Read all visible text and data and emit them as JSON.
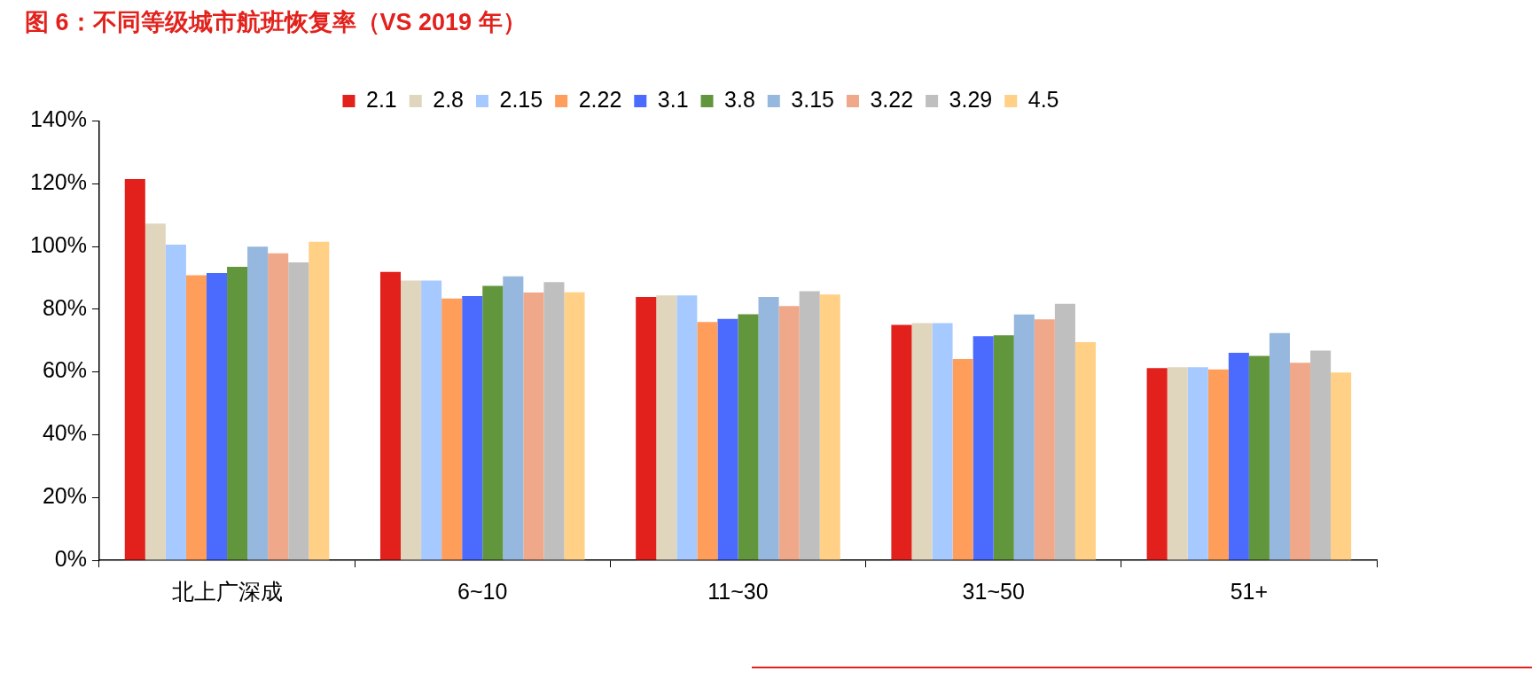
{
  "chart_data": {
    "type": "bar",
    "title": "图 6：不同等级城市航班恢复率（VS 2019 年）",
    "categories": [
      "北上广深成",
      "6~10",
      "11~30",
      "31~50",
      "51+"
    ],
    "series": [
      {
        "name": "2.1",
        "color": "#e2211c",
        "values": [
          121.5,
          91.9,
          83.9,
          75.0,
          61.2
        ]
      },
      {
        "name": "2.8",
        "color": "#e0d6bd",
        "values": [
          107.3,
          89.1,
          84.4,
          75.6,
          61.5
        ]
      },
      {
        "name": "2.15",
        "color": "#a6caff",
        "values": [
          100.6,
          89.1,
          84.4,
          75.6,
          61.5
        ]
      },
      {
        "name": "2.22",
        "color": "#ff9e5a",
        "values": [
          90.8,
          83.4,
          75.9,
          64.1,
          60.8
        ]
      },
      {
        "name": "3.1",
        "color": "#4b6bff",
        "values": [
          91.5,
          84.2,
          76.9,
          71.4,
          66.1
        ]
      },
      {
        "name": "3.8",
        "color": "#62963c",
        "values": [
          93.5,
          87.4,
          78.4,
          71.7,
          65.1
        ]
      },
      {
        "name": "3.15",
        "color": "#96b8de",
        "values": [
          99.9,
          90.5,
          83.9,
          78.3,
          72.4
        ]
      },
      {
        "name": "3.22",
        "color": "#f0a88a",
        "values": [
          97.8,
          85.3,
          81.0,
          76.8,
          62.9
        ]
      },
      {
        "name": "3.29",
        "color": "#bfbfbf",
        "values": [
          94.9,
          88.6,
          85.7,
          81.7,
          66.8
        ]
      },
      {
        "name": "4.5",
        "color": "#ffd085",
        "values": [
          101.5,
          85.4,
          84.7,
          69.5,
          59.8
        ]
      }
    ],
    "ylim": [
      0,
      140
    ],
    "yticks": [
      {
        "value": 0,
        "label": "0%"
      },
      {
        "value": 20,
        "label": "20%"
      },
      {
        "value": 40,
        "label": "40%"
      },
      {
        "value": 60,
        "label": "60%"
      },
      {
        "value": 80,
        "label": "80%"
      },
      {
        "value": 100,
        "label": "100%"
      },
      {
        "value": 120,
        "label": "120%"
      },
      {
        "value": 140,
        "label": "140%"
      }
    ],
    "grid": false,
    "legend": "top"
  }
}
